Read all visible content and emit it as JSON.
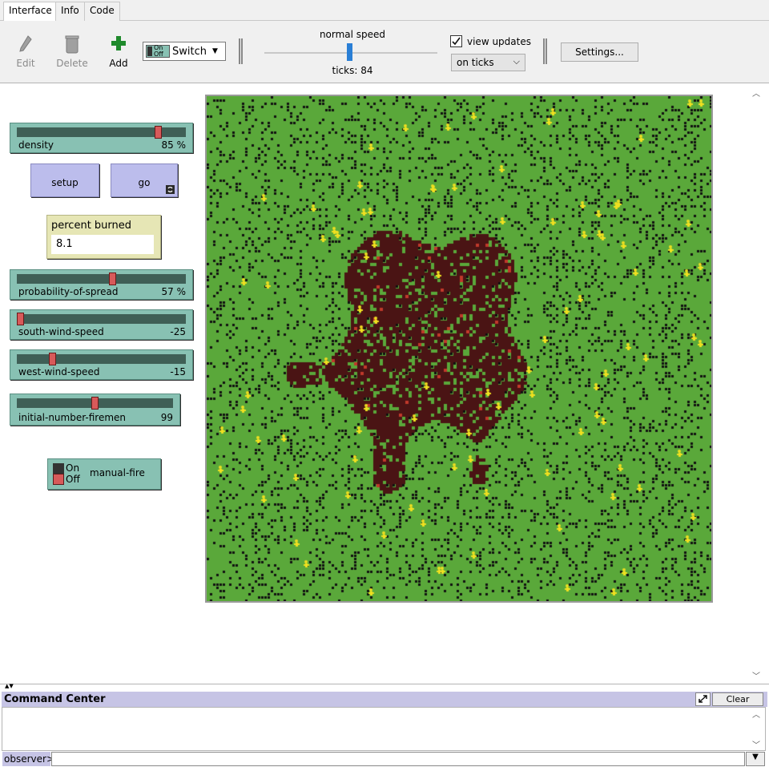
{
  "tabs": [
    "Interface",
    "Info",
    "Code"
  ],
  "toolbar": {
    "edit_label": "Edit",
    "delete_label": "Delete",
    "add_label": "Add",
    "widget_type": "Switch",
    "widget_type_icon_on": "On",
    "widget_type_icon_off": "Off",
    "speed_label": "normal speed",
    "speed_fraction": 0.5,
    "ticks_label": "ticks: 84",
    "view_updates_label": "view updates",
    "view_updates_checked": true,
    "update_mode": "on ticks",
    "settings_label": "Settings..."
  },
  "widgets": {
    "density": {
      "name": "density",
      "value": "85 %",
      "fraction": 0.85
    },
    "setup": {
      "label": "setup"
    },
    "go": {
      "label": "go",
      "forever": true
    },
    "percent_burned": {
      "label": "percent burned",
      "value": "8.1"
    },
    "probability_of_spread": {
      "name": "probability-of-spread",
      "value": "57 %",
      "fraction": 0.57
    },
    "south_wind_speed": {
      "name": "south-wind-speed",
      "value": "-25",
      "fraction": 0.0
    },
    "west_wind_speed": {
      "name": "west-wind-speed",
      "value": "-15",
      "fraction": 0.2
    },
    "initial_number_firemen": {
      "name": "initial-number-firemen",
      "value": "99",
      "fraction": 0.5
    },
    "manual_fire": {
      "label": "manual-fire",
      "on_label": "On",
      "off_label": "Off",
      "state": "off"
    }
  },
  "view": {
    "colors": {
      "tree": "#5aa83a",
      "empty": "#111111",
      "burned": "#4a1414",
      "fire": "#c0392b",
      "fireman": "#f0e020"
    },
    "fireman_count": 99
  },
  "command_center": {
    "title": "Command Center",
    "clear_label": "Clear",
    "prompt": "observer>"
  }
}
